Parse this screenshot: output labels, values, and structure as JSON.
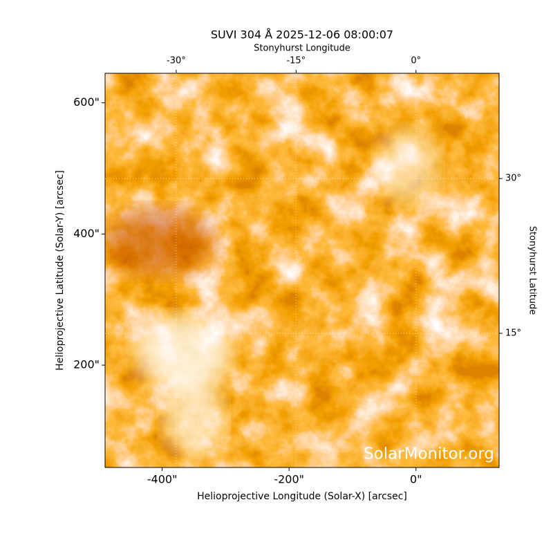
{
  "chart_data": {
    "type": "image",
    "title": "SUVI 304 Å 2025-12-06 08:00:07",
    "xlabel": "Helioprojective Longitude (Solar-X) [arcsec]",
    "ylabel": "Helioprojective Latitude (Solar-Y) [arcsec]",
    "x2label": "Stonyhurst Longitude",
    "y2label": "Stonyhurst Latitude",
    "watermark": "SolarMonitor.org",
    "xlim": [
      -490,
      131
    ],
    "ylim": [
      44,
      645
    ],
    "xticks": [
      {
        "value": -400,
        "label": "-400\""
      },
      {
        "value": -200,
        "label": "-200\""
      },
      {
        "value": 0,
        "label": "0\""
      }
    ],
    "yticks": [
      {
        "value": 200,
        "label": "200\""
      },
      {
        "value": 400,
        "label": "400\""
      },
      {
        "value": 600,
        "label": "600\""
      }
    ],
    "x2lim": [
      -38.9,
      10.4
    ],
    "x2ticks": [
      {
        "value": -30,
        "label": "-30°"
      },
      {
        "value": -15,
        "label": "-15°"
      },
      {
        "value": 0,
        "label": "0°"
      }
    ],
    "y2lim": [
      2.0,
      40.2
    ],
    "y2ticks": [
      {
        "value": 15,
        "label": "15°"
      },
      {
        "value": 30,
        "label": "30°"
      }
    ],
    "grid": true
  }
}
